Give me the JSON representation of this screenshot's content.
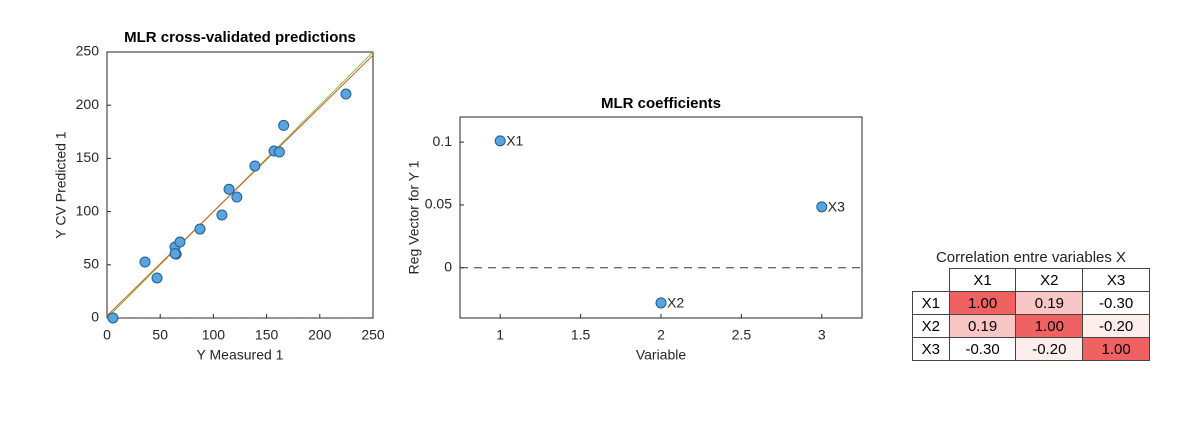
{
  "chart_data": [
    {
      "type": "scatter",
      "title": "MLR cross-validated predictions",
      "xlabel": "Y Measured 1",
      "ylabel": "Y CV Predicted 1",
      "x": [
        5.6,
        35.7,
        47,
        63.9,
        65,
        64,
        68.6,
        87.4,
        108,
        114.7,
        122,
        139,
        157,
        162,
        166,
        224.6
      ],
      "values": [
        0,
        52.6,
        37.6,
        66.7,
        60,
        60.5,
        71.4,
        83.6,
        96.8,
        121,
        113.7,
        142.9,
        157,
        156,
        181,
        210.5
      ],
      "color": "#5ba3dc",
      "ref_lines": [
        {
          "color": "#7ac143",
          "x": [
            0,
            250
          ],
          "y": [
            0,
            250
          ]
        },
        {
          "color": "#d9531e",
          "x": [
            0,
            250
          ],
          "y": [
            2,
            247
          ]
        }
      ],
      "zero_line": 0,
      "xlim": [
        0,
        250
      ],
      "ylim": [
        0,
        250
      ],
      "xticks": [
        0,
        50,
        100,
        150,
        200,
        250
      ],
      "yticks": [
        0,
        50,
        100,
        150,
        200,
        250
      ]
    },
    {
      "type": "scatter",
      "title": "MLR coefficients",
      "xlabel": "Variable",
      "ylabel": "Reg Vector for Y 1",
      "x": [
        1,
        2,
        3
      ],
      "values": [
        0.101,
        -0.028,
        0.0485
      ],
      "point_labels": [
        "X1",
        "X2",
        "X3"
      ],
      "color": "#5ba3dc",
      "zero_line": 0,
      "xlim": [
        0.75,
        3.25
      ],
      "ylim": [
        -0.04,
        0.12
      ],
      "xticks": [
        1,
        1.5,
        2,
        2.5,
        3
      ],
      "yticks": [
        0,
        0.05,
        0.1
      ]
    }
  ],
  "table": {
    "title": "Correlation entre variables X",
    "columns": [
      "X1",
      "X2",
      "X3"
    ],
    "rows": [
      {
        "label": "X1",
        "cells": [
          "1.00",
          "0.19",
          "-0.30"
        ]
      },
      {
        "label": "X2",
        "cells": [
          "0.19",
          "1.00",
          "-0.20"
        ]
      },
      {
        "label": "X3",
        "cells": [
          "-0.30",
          "-0.20",
          "1.00"
        ]
      }
    ],
    "cell_colors": [
      [
        "#f06262",
        "#f9c6c6",
        "#ffffff"
      ],
      [
        "#f9c6c6",
        "#f06262",
        "#fdeeee"
      ],
      [
        "#ffffff",
        "#fdeeee",
        "#f06262"
      ]
    ]
  }
}
